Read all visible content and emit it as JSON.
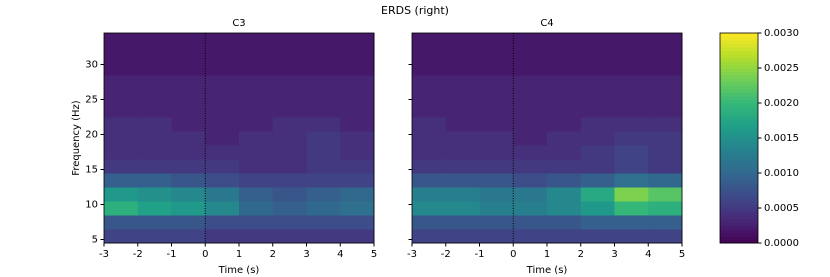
{
  "title": "ERDS (right)",
  "chart_data": [
    {
      "type": "heatmap",
      "title": "C3",
      "x_label": "Time (s)",
      "y_label": "Frequency (Hz)",
      "xbins": [
        -3,
        -2,
        -1,
        0,
        1,
        2,
        3,
        4,
        5
      ],
      "ybins": [
        4.5,
        6.5,
        8.5,
        10.5,
        12.5,
        14.5,
        16.5,
        18.5,
        20.5,
        22.5,
        24.5,
        26.5,
        28.5,
        30.5,
        32.5,
        34.5
      ],
      "xlim": [
        -3,
        5
      ],
      "ylim": [
        4.5,
        34.5
      ],
      "xticks": [
        -3,
        -2,
        -1,
        0,
        1,
        2,
        3,
        4,
        5
      ],
      "yticks": [
        5,
        10,
        15,
        20,
        25,
        30
      ],
      "vline": 0,
      "values": [
        [
          0.0006,
          0.0006,
          0.0006,
          0.0005,
          0.0005,
          0.0005,
          0.0005,
          0.0005
        ],
        [
          0.0008,
          0.0008,
          0.0008,
          0.0007,
          0.0007,
          0.0007,
          0.0007,
          0.0007
        ],
        [
          0.0019,
          0.0017,
          0.0016,
          0.0014,
          0.001,
          0.0009,
          0.001,
          0.0011
        ],
        [
          0.0016,
          0.0015,
          0.0014,
          0.0012,
          0.0009,
          0.0008,
          0.0009,
          0.001
        ],
        [
          0.0009,
          0.0009,
          0.0008,
          0.0007,
          0.0006,
          0.0006,
          0.0006,
          0.0006
        ],
        [
          0.0005,
          0.0005,
          0.0005,
          0.0005,
          0.0004,
          0.0004,
          0.0005,
          0.0005
        ],
        [
          0.0004,
          0.0004,
          0.0004,
          0.0004,
          0.0004,
          0.0004,
          0.0005,
          0.0004
        ],
        [
          0.0004,
          0.0004,
          0.0004,
          0.0003,
          0.0004,
          0.0004,
          0.0005,
          0.0004
        ],
        [
          0.0004,
          0.0004,
          0.0003,
          0.0003,
          0.0003,
          0.0004,
          0.0004,
          0.0003
        ],
        [
          0.0003,
          0.0003,
          0.0003,
          0.0003,
          0.0003,
          0.0003,
          0.0003,
          0.0003
        ],
        [
          0.0003,
          0.0003,
          0.0003,
          0.0003,
          0.0003,
          0.0003,
          0.0003,
          0.0003
        ],
        [
          0.0003,
          0.0003,
          0.0003,
          0.0003,
          0.0003,
          0.0003,
          0.0003,
          0.0003
        ],
        [
          0.0002,
          0.0002,
          0.0002,
          0.0002,
          0.0002,
          0.0002,
          0.0002,
          0.0002
        ],
        [
          0.0002,
          0.0002,
          0.0002,
          0.0002,
          0.0002,
          0.0002,
          0.0002,
          0.0002
        ],
        [
          0.0002,
          0.0002,
          0.0002,
          0.0002,
          0.0002,
          0.0002,
          0.0002,
          0.0002
        ]
      ]
    },
    {
      "type": "heatmap",
      "title": "C4",
      "x_label": "Time (s)",
      "xbins": [
        -3,
        -2,
        -1,
        0,
        1,
        2,
        3,
        4,
        5
      ],
      "ybins": [
        4.5,
        6.5,
        8.5,
        10.5,
        12.5,
        14.5,
        16.5,
        18.5,
        20.5,
        22.5,
        24.5,
        26.5,
        28.5,
        30.5,
        32.5,
        34.5
      ],
      "xlim": [
        -3,
        5
      ],
      "ylim": [
        4.5,
        34.5
      ],
      "xticks": [
        -3,
        -2,
        -1,
        0,
        1,
        2,
        3,
        4,
        5
      ],
      "vline": 0,
      "values": [
        [
          0.0006,
          0.0006,
          0.0006,
          0.0006,
          0.0006,
          0.0006,
          0.0006,
          0.0006
        ],
        [
          0.0008,
          0.0008,
          0.0008,
          0.0008,
          0.0008,
          0.0009,
          0.0009,
          0.0009
        ],
        [
          0.0014,
          0.0014,
          0.0013,
          0.0013,
          0.0014,
          0.0016,
          0.002,
          0.0019
        ],
        [
          0.0013,
          0.0013,
          0.0012,
          0.0012,
          0.0014,
          0.0018,
          0.0024,
          0.0022
        ],
        [
          0.0008,
          0.0008,
          0.0008,
          0.0007,
          0.0008,
          0.0009,
          0.0011,
          0.001
        ],
        [
          0.0005,
          0.0005,
          0.0005,
          0.0005,
          0.0005,
          0.0005,
          0.0006,
          0.0005
        ],
        [
          0.0004,
          0.0004,
          0.0004,
          0.0004,
          0.0004,
          0.0005,
          0.0006,
          0.0005
        ],
        [
          0.0004,
          0.0004,
          0.0004,
          0.0003,
          0.0004,
          0.0004,
          0.0005,
          0.0005
        ],
        [
          0.0004,
          0.0003,
          0.0003,
          0.0003,
          0.0003,
          0.0004,
          0.0004,
          0.0004
        ],
        [
          0.0003,
          0.0003,
          0.0003,
          0.0003,
          0.0003,
          0.0003,
          0.0003,
          0.0003
        ],
        [
          0.0003,
          0.0003,
          0.0003,
          0.0003,
          0.0003,
          0.0003,
          0.0003,
          0.0003
        ],
        [
          0.0003,
          0.0003,
          0.0003,
          0.0003,
          0.0003,
          0.0003,
          0.0003,
          0.0003
        ],
        [
          0.0002,
          0.0002,
          0.0002,
          0.0002,
          0.0002,
          0.0002,
          0.0002,
          0.0002
        ],
        [
          0.0002,
          0.0002,
          0.0002,
          0.0002,
          0.0002,
          0.0002,
          0.0002,
          0.0002
        ],
        [
          0.0002,
          0.0002,
          0.0002,
          0.0002,
          0.0002,
          0.0002,
          0.0002,
          0.0002
        ]
      ]
    }
  ],
  "colorbar": {
    "lim": [
      0,
      0.003
    ],
    "ticks": [
      {
        "value": 0,
        "label": "0.0000"
      },
      {
        "value": 0.0005,
        "label": "0.0005"
      },
      {
        "value": 0.001,
        "label": "0.0010"
      },
      {
        "value": 0.0015,
        "label": "0.0015"
      },
      {
        "value": 0.002,
        "label": "0.0020"
      },
      {
        "value": 0.0025,
        "label": "0.0025"
      },
      {
        "value": 0.003,
        "label": "0.0030"
      }
    ]
  }
}
